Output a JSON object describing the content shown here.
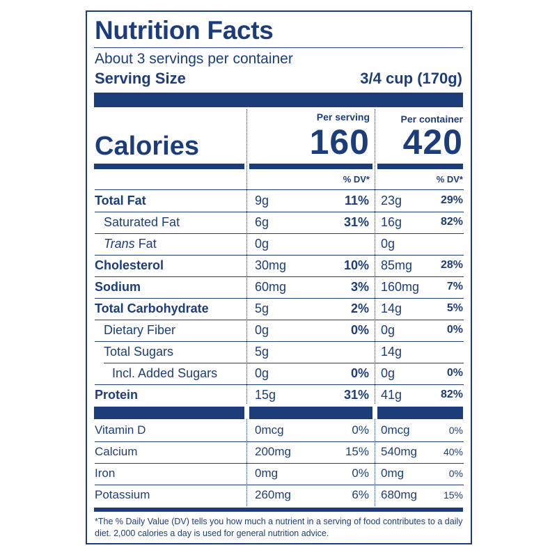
{
  "label": {
    "title": "Nutrition Facts",
    "servings_per_container": "About 3 servings per container",
    "serving_size_label": "Serving Size",
    "serving_size_value": "3/4 cup (170g)",
    "per_serving_label": "Per serving",
    "per_container_label": "Per container",
    "calories_label": "Calories",
    "calories_per_serving": "160",
    "calories_per_container": "420",
    "dv_header_serving": "% DV*",
    "dv_header_container": "% DV*",
    "nutrients": [
      {
        "name": "Total Fat",
        "amount": "9g",
        "dv": "11%",
        "amount_c": "23g",
        "dv_c": "29%"
      },
      {
        "name": "Saturated Fat",
        "amount": "6g",
        "dv": "31%",
        "amount_c": "16g",
        "dv_c": "82%"
      },
      {
        "name_italic": "Trans",
        "name": " Fat",
        "amount": "0g",
        "dv": "",
        "amount_c": "0g",
        "dv_c": ""
      },
      {
        "name": "Cholesterol",
        "amount": "30mg",
        "dv": "10%",
        "amount_c": "85mg",
        "dv_c": "28%"
      },
      {
        "name": "Sodium",
        "amount": "60mg",
        "dv": "3%",
        "amount_c": "160mg",
        "dv_c": "7%"
      },
      {
        "name": "Total Carbohydrate",
        "amount": "5g",
        "dv": "2%",
        "amount_c": "14g",
        "dv_c": "5%"
      },
      {
        "name": "Dietary Fiber",
        "amount": "0g",
        "dv": "0%",
        "amount_c": "0g",
        "dv_c": "0%"
      },
      {
        "name": "Total Sugars",
        "amount": "5g",
        "dv": "",
        "amount_c": "14g",
        "dv_c": ""
      },
      {
        "name": "Incl. Added Sugars",
        "amount": "0g",
        "dv": "0%",
        "amount_c": "0g",
        "dv_c": "0%"
      },
      {
        "name": "Protein",
        "amount": "15g",
        "dv": "31%",
        "amount_c": "41g",
        "dv_c": "82%"
      }
    ],
    "vitamins": [
      {
        "name": "Vitamin D",
        "amount": "0mcg",
        "dv": "0%",
        "amount_c": "0mcg",
        "dv_c": "0%"
      },
      {
        "name": "Calcium",
        "amount": "200mg",
        "dv": "15%",
        "amount_c": "540mg",
        "dv_c": "40%"
      },
      {
        "name": "Iron",
        "amount": "0mg",
        "dv": "0%",
        "amount_c": "0mg",
        "dv_c": "0%"
      },
      {
        "name": "Potassium",
        "amount": "260mg",
        "dv": "6%",
        "amount_c": "680mg",
        "dv_c": "15%"
      }
    ],
    "footnote": "*The % Daily Value (DV) tells you how much a nutrient in a serving of food contributes to a daily diet. 2,000 calories a day is used for general nutrition advice.",
    "ink_color": "#1d3d7a"
  }
}
